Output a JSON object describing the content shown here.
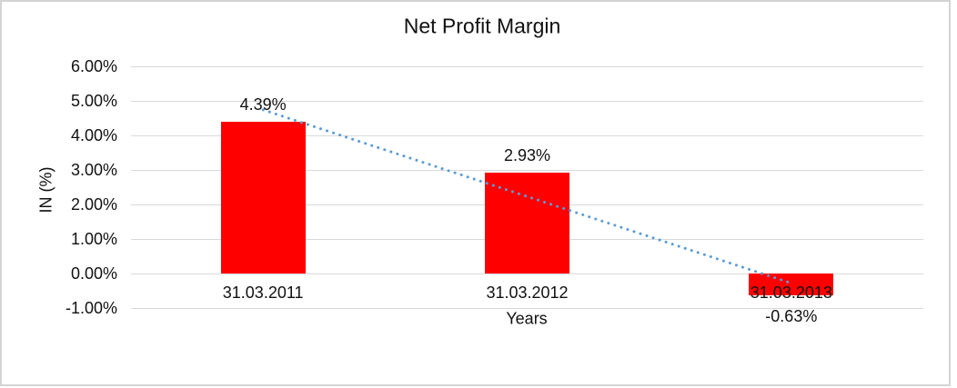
{
  "window": {
    "background_color": "#FFFFFF",
    "frame_border_color": "#D4D4D4"
  },
  "chart_data": {
    "type": "bar",
    "title": "Net Profit Margin",
    "xlabel": "Years",
    "ylabel": "IN (%)",
    "categories": [
      "31.03.2011",
      "31.03.2012",
      "31.03.2013"
    ],
    "values": [
      4.39,
      2.93,
      -0.63
    ],
    "data_labels": [
      "4.39%",
      "2.93%",
      "-0.63%"
    ],
    "ylim": [
      -1,
      6
    ],
    "yticks": [
      {
        "value": 6,
        "label": "6.00%"
      },
      {
        "value": 5,
        "label": "5.00%"
      },
      {
        "value": 4,
        "label": "4.00%"
      },
      {
        "value": 3,
        "label": "3.00%"
      },
      {
        "value": 2,
        "label": "2.00%"
      },
      {
        "value": 1,
        "label": "1.00%"
      },
      {
        "value": 0,
        "label": "0.00%"
      },
      {
        "value": -1,
        "label": "-1.00%"
      }
    ],
    "grid": true,
    "legend": "none",
    "bar_color": "#FF0000",
    "gridline_color": "#D9D9D9",
    "text_color": "#111111",
    "trendline": {
      "type": "linear",
      "style": "dotted",
      "color": "#5B9BD5",
      "start_value": 4.74,
      "end_value": -0.28
    }
  }
}
